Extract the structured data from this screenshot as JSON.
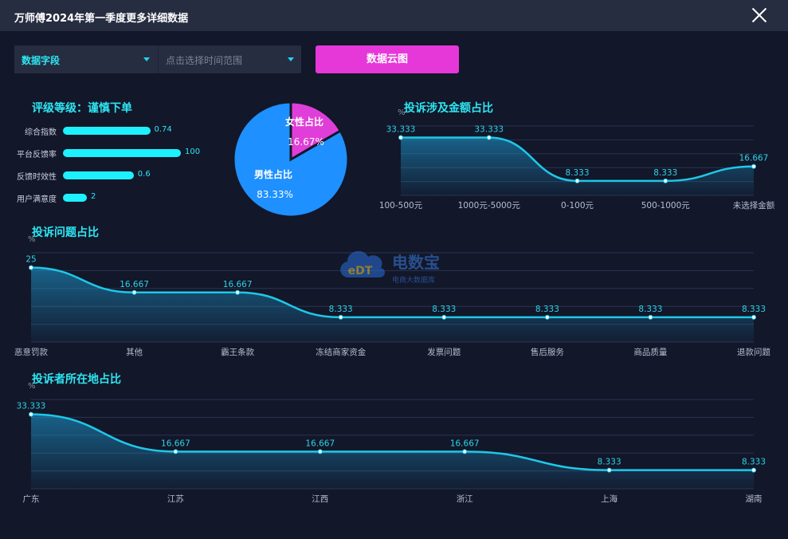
{
  "window": {
    "title": "万师傅2024年第一季度更多详细数据"
  },
  "toolbar": {
    "field_select_label": "数据字段",
    "time_select_placeholder": "点击选择时间范围",
    "cloud_button_label": "数据云图"
  },
  "rating": {
    "title": "评级等级：谨慎下单",
    "items": [
      {
        "label": "综合指数",
        "value": 0.74,
        "display": "0.74"
      },
      {
        "label": "平台反馈率",
        "value": 100,
        "display": "100"
      },
      {
        "label": "反馈时效性",
        "value": 0.6,
        "display": "0.6"
      },
      {
        "label": "用户满意度",
        "value": 2,
        "display": "2"
      }
    ]
  },
  "gender_pie": {
    "female_label": "女性占比",
    "female_value": "16.67%",
    "male_label": "男性占比",
    "male_value": "83.33%",
    "colors": {
      "female": "#e03ed8",
      "male": "#1e90ff"
    }
  },
  "watermark": {
    "brand": "电数宝",
    "sub": "电商大数据库",
    "logo_text": "eDT"
  },
  "chart_data": [
    {
      "type": "pie",
      "categories": [
        "女性占比",
        "男性占比"
      ],
      "values": [
        16.67,
        83.33
      ]
    },
    {
      "type": "area",
      "title": "投诉涉及金额占比",
      "ylabel": "%",
      "categories": [
        "100-500元",
        "1000元-5000元",
        "0-100元",
        "500-1000元",
        "未选择金额"
      ],
      "values": [
        33.333,
        33.333,
        8.333,
        8.333,
        16.667
      ],
      "labels": [
        "33.333",
        "33.333",
        "8.333",
        "8.333",
        "16.667"
      ],
      "ylim": [
        0,
        40
      ],
      "grid": true
    },
    {
      "type": "area",
      "title": "投诉问题占比",
      "ylabel": "%",
      "categories": [
        "恶意罚款",
        "其他",
        "霸王条款",
        "冻结商家资金",
        "发票问题",
        "售后服务",
        "商品质量",
        "退款问题"
      ],
      "values": [
        25,
        16.667,
        16.667,
        8.333,
        8.333,
        8.333,
        8.333,
        8.333
      ],
      "labels": [
        "25",
        "16.667",
        "16.667",
        "8.333",
        "8.333",
        "8.333",
        "8.333",
        "8.333"
      ],
      "ylim": [
        0,
        30
      ],
      "grid": true
    },
    {
      "type": "area",
      "title": "投诉者所在地占比",
      "ylabel": "%",
      "categories": [
        "广东",
        "江苏",
        "江西",
        "浙江",
        "上海",
        "湖南"
      ],
      "values": [
        33.333,
        16.667,
        16.667,
        16.667,
        8.333,
        8.333
      ],
      "labels": [
        "33.333",
        "16.667",
        "16.667",
        "16.667",
        "8.333",
        "8.333"
      ],
      "ylim": [
        0,
        40
      ],
      "grid": true
    }
  ]
}
